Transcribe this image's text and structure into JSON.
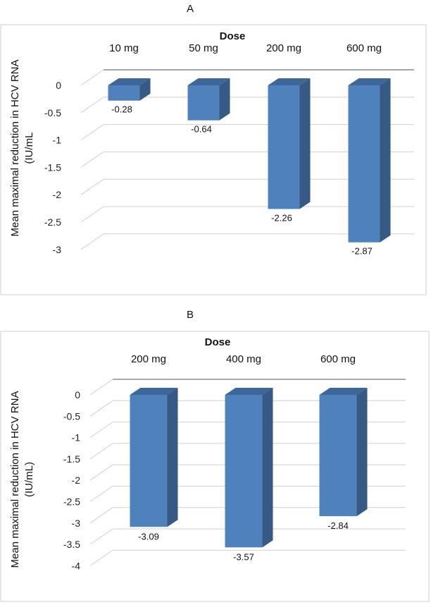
{
  "colors": {
    "bar_front": "#4f81bd",
    "bar_side": "#375a84",
    "bar_top": "#3d6798",
    "grid": "#d0d0d0",
    "axis_line": "#8c8c8c",
    "frame": "#cfcfcf"
  },
  "chart_data": [
    {
      "type": "bar",
      "panel_title": "A",
      "xlabel": "Dose",
      "ylabel_line1": "Mean maximal reduction in HCV RNA",
      "ylabel_line2": "(IU/mL",
      "categories": [
        "10 mg",
        "50 mg",
        "200 mg",
        "600 mg"
      ],
      "values": [
        -0.28,
        -0.64,
        -2.26,
        -2.87
      ],
      "value_labels": [
        "-0.28",
        "-0.64",
        "-2.26",
        "-2.87"
      ],
      "ticks": [
        "0",
        "-0.5",
        "-1",
        "-1.5",
        "-2",
        "-2.5",
        "-3"
      ],
      "ylim": [
        -3,
        0
      ],
      "grid": true
    },
    {
      "type": "bar",
      "panel_title": "B",
      "xlabel": "Dose",
      "ylabel_line1": "Mean maximal reduction in HCV RNA",
      "ylabel_line2": "(IU/mL)",
      "categories": [
        "200 mg",
        "400 mg",
        "600 mg"
      ],
      "values": [
        -3.09,
        -3.57,
        -2.84
      ],
      "value_labels": [
        "-3.09",
        "-3.57",
        "-2.84"
      ],
      "ticks": [
        "0",
        "-0.5",
        "-1",
        "-1.5",
        "-2",
        "-2.5",
        "-3",
        "-3.5",
        "-4"
      ],
      "ylim": [
        -4,
        0
      ],
      "grid": true
    }
  ]
}
